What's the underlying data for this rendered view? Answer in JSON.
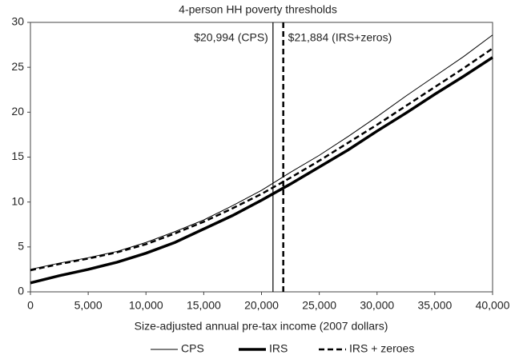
{
  "chart_data": {
    "type": "line",
    "title": "4-person HH poverty thresholds",
    "xlabel": "Size-adjusted annual pre-tax income (2007 dollars)",
    "x": [
      0,
      2500,
      5000,
      7500,
      10000,
      12500,
      15000,
      17500,
      20000,
      22500,
      25000,
      27500,
      30000,
      32500,
      35000,
      37500,
      40000
    ],
    "series": [
      {
        "name": "CPS",
        "color": "#000000",
        "width": 1,
        "style": "solid",
        "values": [
          2.5,
          3.2,
          3.8,
          4.5,
          5.5,
          6.7,
          8.0,
          9.6,
          11.3,
          13.3,
          15.2,
          17.3,
          19.5,
          21.8,
          24.0,
          26.2,
          28.6
        ]
      },
      {
        "name": "IRS",
        "color": "#000000",
        "width": 3.5,
        "style": "solid",
        "values": [
          1.0,
          1.8,
          2.5,
          3.3,
          4.3,
          5.5,
          7.0,
          8.5,
          10.2,
          12.0,
          13.9,
          15.8,
          17.9,
          19.9,
          22.0,
          24.0,
          26.1
        ]
      },
      {
        "name": "IRS + zeroes",
        "color": "#000000",
        "width": 2.5,
        "style": "dashed",
        "values": [
          2.4,
          3.1,
          3.7,
          4.4,
          5.3,
          6.5,
          7.8,
          9.3,
          10.9,
          12.7,
          14.6,
          16.6,
          18.6,
          20.7,
          22.8,
          24.9,
          27.1
        ]
      }
    ],
    "annotations": [
      {
        "text": "$20,994 (CPS)",
        "x": 20994,
        "style": "solid",
        "side": "left"
      },
      {
        "text": "$21,884 (IRS+zeros)",
        "x": 21884,
        "style": "dashed",
        "side": "right"
      }
    ],
    "xlim": [
      0,
      40000
    ],
    "xticks": [
      0,
      {
        "value": 5000,
        "label": "5,000"
      },
      {
        "value": 10000,
        "label": "10,000"
      },
      {
        "value": 15000,
        "label": "15,000"
      },
      {
        "value": 20000,
        "label": "20,000"
      },
      {
        "value": 25000,
        "label": "25,000"
      },
      {
        "value": 30000,
        "label": "30,000"
      },
      {
        "value": 35000,
        "label": "35,000"
      },
      {
        "value": 40000,
        "label": "40,000"
      }
    ],
    "ylim": [
      0,
      30
    ],
    "yticks": [
      0,
      5,
      10,
      15,
      20,
      25,
      30
    ],
    "grid": false,
    "legend": "bottom"
  }
}
